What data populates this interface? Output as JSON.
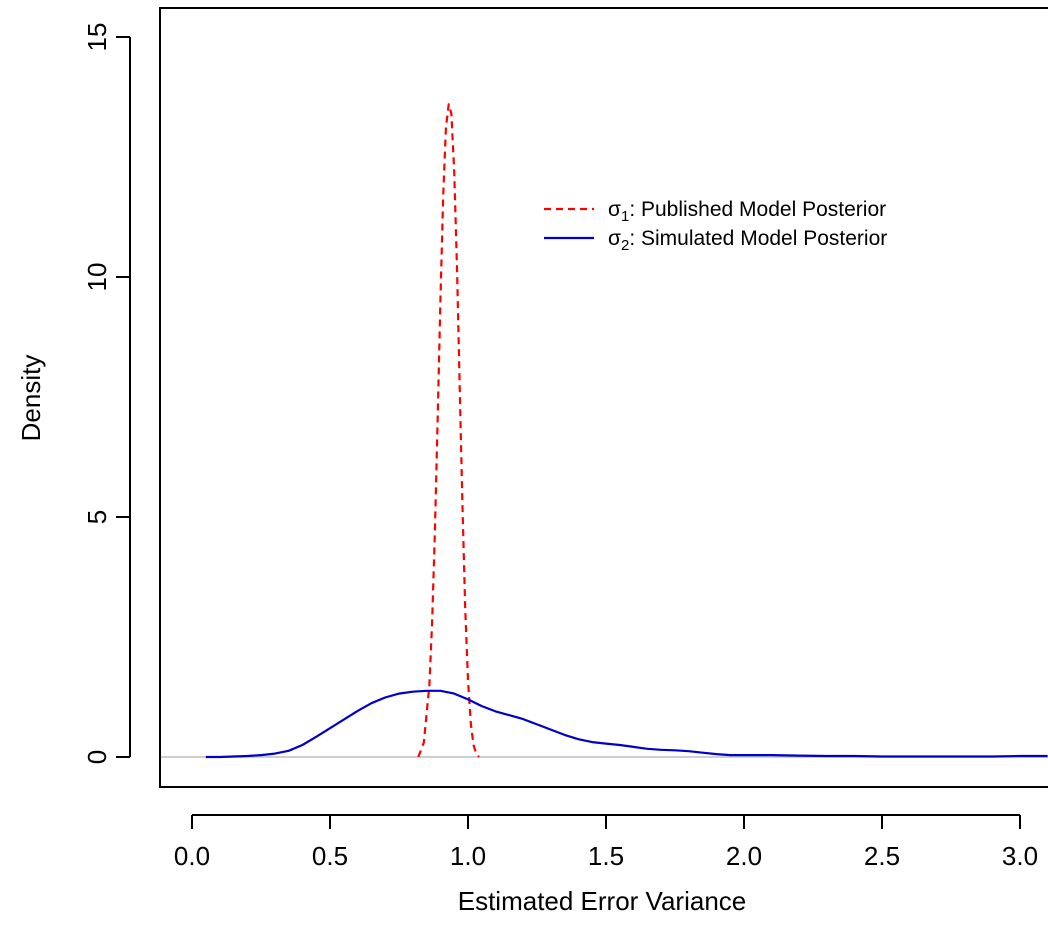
{
  "chart_data": {
    "type": "line",
    "title": "",
    "xlabel": "Estimated Error Variance",
    "ylabel": "Density",
    "xlim": [
      -0.12,
      3.1
    ],
    "ylim": [
      -1.1,
      15.5
    ],
    "x_ticks": [
      {
        "value": 0.0,
        "label": "0.0"
      },
      {
        "value": 0.5,
        "label": "0.5"
      },
      {
        "value": 1.0,
        "label": "1.0"
      },
      {
        "value": 1.5,
        "label": "1.5"
      },
      {
        "value": 2.0,
        "label": "2.0"
      },
      {
        "value": 2.5,
        "label": "2.5"
      },
      {
        "value": 3.0,
        "label": "3.0"
      }
    ],
    "y_ticks": [
      {
        "value": 0,
        "label": "0"
      },
      {
        "value": 5,
        "label": "5"
      },
      {
        "value": 10,
        "label": "10"
      },
      {
        "value": 15,
        "label": "15"
      }
    ],
    "baseline": {
      "y": 0,
      "color": "#bebebe"
    },
    "legend_position": "top-right",
    "series": [
      {
        "symbol": "σ",
        "subscript": "1",
        "label_suffix": ": Published Model Posterior",
        "color": "#ff0000",
        "line_style": "dashed",
        "x": [
          0.82,
          0.84,
          0.86,
          0.87,
          0.88,
          0.89,
          0.9,
          0.91,
          0.92,
          0.93,
          0.94,
          0.95,
          0.96,
          0.97,
          0.98,
          0.99,
          1.0,
          1.01,
          1.02,
          1.03,
          1.04
        ],
        "y": [
          0.0,
          0.3,
          1.5,
          2.8,
          4.7,
          7.0,
          9.5,
          11.7,
          13.1,
          13.6,
          13.4,
          12.2,
          10.2,
          7.7,
          5.2,
          3.1,
          1.6,
          0.7,
          0.25,
          0.07,
          0.0
        ]
      },
      {
        "symbol": "σ",
        "subscript": "2",
        "label_suffix": ": Simulated Model Posterior",
        "color": "#0000cd",
        "line_style": "solid",
        "x": [
          0.05,
          0.1,
          0.15,
          0.2,
          0.25,
          0.3,
          0.35,
          0.4,
          0.45,
          0.5,
          0.55,
          0.6,
          0.65,
          0.7,
          0.75,
          0.8,
          0.85,
          0.9,
          0.95,
          1.0,
          1.05,
          1.1,
          1.15,
          1.2,
          1.25,
          1.3,
          1.35,
          1.4,
          1.45,
          1.5,
          1.55,
          1.6,
          1.65,
          1.7,
          1.75,
          1.8,
          1.85,
          1.9,
          1.95,
          2.0,
          2.1,
          2.2,
          2.3,
          2.4,
          2.5,
          2.6,
          2.7,
          2.8,
          2.9,
          3.0,
          3.1
        ],
        "y": [
          0.0,
          0.0,
          0.01,
          0.02,
          0.04,
          0.07,
          0.13,
          0.25,
          0.42,
          0.6,
          0.78,
          0.96,
          1.12,
          1.24,
          1.32,
          1.36,
          1.38,
          1.38,
          1.32,
          1.2,
          1.06,
          0.95,
          0.87,
          0.79,
          0.68,
          0.57,
          0.46,
          0.37,
          0.31,
          0.28,
          0.25,
          0.21,
          0.17,
          0.15,
          0.14,
          0.12,
          0.09,
          0.06,
          0.04,
          0.04,
          0.04,
          0.03,
          0.02,
          0.02,
          0.01,
          0.01,
          0.01,
          0.01,
          0.01,
          0.02,
          0.02
        ]
      }
    ]
  }
}
